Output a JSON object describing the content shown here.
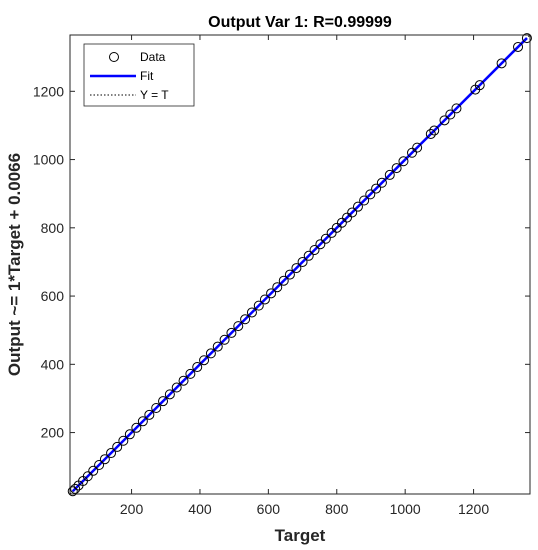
{
  "chart_data": {
    "type": "scatter",
    "title": "Output Var 1: R=0.99999",
    "xlabel": "Target",
    "ylabel": "Output ~= 1*Target + 0.0066",
    "xlim": [
      20,
      1365
    ],
    "ylim": [
      20,
      1365
    ],
    "xticks": [
      200,
      400,
      600,
      800,
      1000,
      1200
    ],
    "yticks": [
      200,
      400,
      600,
      800,
      1000,
      1200
    ],
    "grid": false,
    "legend_position": "top-left",
    "legend": [
      "Data",
      "Fit",
      "Y = T"
    ],
    "fit": {
      "slope": 1,
      "intercept": 0.0066
    },
    "colors": {
      "data": "#000000",
      "fit": "#0000ff",
      "identity": "#000000"
    },
    "series": [
      {
        "name": "Data",
        "x": [
          28,
          35,
          45,
          58,
          72,
          88,
          105,
          122,
          140,
          158,
          176,
          195,
          214,
          233,
          252,
          272,
          292,
          312,
          332,
          352,
          372,
          392,
          412,
          432,
          452,
          472,
          492,
          512,
          532,
          552,
          572,
          590,
          608,
          626,
          645,
          663,
          682,
          700,
          718,
          735,
          752,
          768,
          785,
          800,
          815,
          830,
          845,
          862,
          880,
          898,
          915,
          932,
          955,
          975,
          995,
          1020,
          1035,
          1075,
          1085,
          1115,
          1132,
          1150,
          1205,
          1218,
          1282,
          1330,
          1356
        ],
        "y": [
          28,
          35,
          45,
          58,
          72,
          88,
          105,
          122,
          140,
          158,
          176,
          195,
          214,
          233,
          252,
          272,
          292,
          312,
          332,
          352,
          372,
          392,
          412,
          432,
          452,
          472,
          492,
          512,
          532,
          552,
          572,
          590,
          608,
          626,
          645,
          663,
          682,
          700,
          718,
          735,
          752,
          768,
          785,
          800,
          815,
          830,
          845,
          862,
          880,
          898,
          915,
          932,
          955,
          975,
          995,
          1020,
          1035,
          1075,
          1085,
          1115,
          1132,
          1150,
          1205,
          1218,
          1282,
          1330,
          1356
        ]
      }
    ]
  }
}
